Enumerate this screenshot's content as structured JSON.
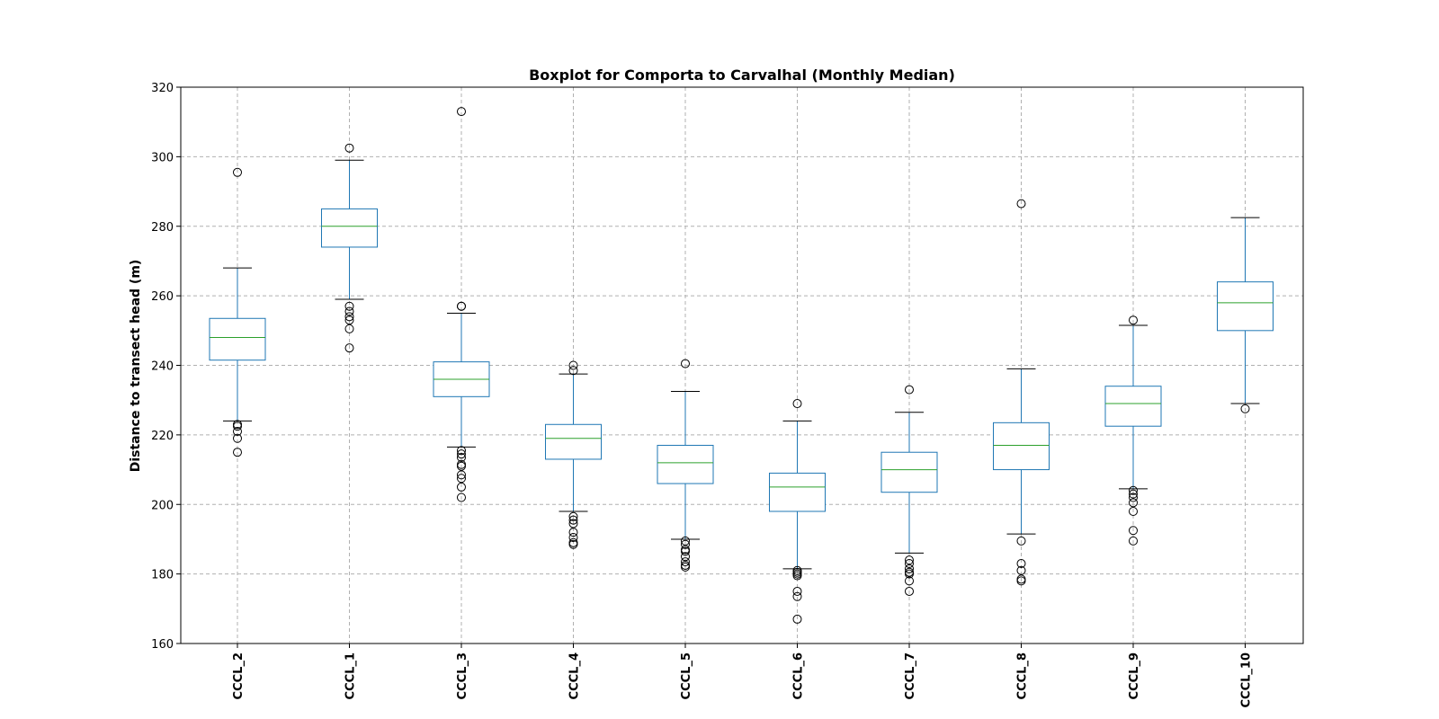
{
  "chart_data": {
    "type": "boxplot",
    "title": "Boxplot for Comporta to Carvalhal (Monthly Median)",
    "xlabel": "",
    "ylabel": "Distance to transect head (m)",
    "ylim": [
      160,
      320
    ],
    "yticks": [
      160,
      180,
      200,
      220,
      240,
      260,
      280,
      300,
      320
    ],
    "grid": true,
    "colors": {
      "box": "#1f77b4",
      "median": "#2ca02c",
      "whisker": "#1f77b4",
      "cap": "#000000",
      "flier": "#000000",
      "grid": "#b0b0b0"
    },
    "categories": [
      "CCCL_2",
      "CCCL_1",
      "CCCL_3",
      "CCCL_4",
      "CCCL_5",
      "CCCL_6",
      "CCCL_7",
      "CCCL_8",
      "CCCL_9",
      "CCCL_10"
    ],
    "boxes": [
      {
        "name": "CCCL_2",
        "whislo": 224,
        "q1": 241.5,
        "med": 248,
        "q3": 253.5,
        "whishi": 268,
        "fliers": [
          295.5,
          223,
          222.5,
          221,
          219,
          215
        ]
      },
      {
        "name": "CCCL_1",
        "whislo": 259,
        "q1": 274,
        "med": 280,
        "q3": 285,
        "whishi": 299,
        "fliers": [
          302.5,
          257,
          255.5,
          254,
          253,
          250.5,
          245
        ]
      },
      {
        "name": "CCCL_3",
        "whislo": 216.5,
        "q1": 231,
        "med": 236,
        "q3": 241,
        "whishi": 255,
        "fliers": [
          313,
          257,
          257,
          215.5,
          214.5,
          213.5,
          211.5,
          211,
          208.5,
          207.5,
          205,
          202
        ]
      },
      {
        "name": "CCCL_4",
        "whislo": 198,
        "q1": 213,
        "med": 219,
        "q3": 223,
        "whishi": 237.5,
        "fliers": [
          240,
          238.5,
          196.5,
          195.5,
          194.5,
          192,
          190.5,
          189,
          188.5
        ]
      },
      {
        "name": "CCCL_5",
        "whislo": 190,
        "q1": 206,
        "med": 212,
        "q3": 217,
        "whishi": 232.5,
        "fliers": [
          240.5,
          189.5,
          188.5,
          187,
          186.5,
          185,
          183.5,
          182.5,
          182
        ]
      },
      {
        "name": "CCCL_6",
        "whislo": 181.5,
        "q1": 198,
        "med": 205,
        "q3": 209,
        "whishi": 224,
        "fliers": [
          229,
          181,
          180.5,
          180,
          179.5,
          175,
          173.5,
          167
        ]
      },
      {
        "name": "CCCL_7",
        "whislo": 186,
        "q1": 203.5,
        "med": 210,
        "q3": 215,
        "whishi": 226.5,
        "fliers": [
          233,
          184,
          183,
          181.5,
          180.5,
          180,
          178,
          175
        ]
      },
      {
        "name": "CCCL_8",
        "whislo": 191.5,
        "q1": 210,
        "med": 217,
        "q3": 223.5,
        "whishi": 239,
        "fliers": [
          286.5,
          189.5,
          183,
          181,
          178.5,
          178
        ]
      },
      {
        "name": "CCCL_9",
        "whislo": 204.5,
        "q1": 222.5,
        "med": 229,
        "q3": 234,
        "whishi": 251.5,
        "fliers": [
          253,
          204,
          203,
          202,
          200.5,
          198,
          192.5,
          189.5
        ]
      },
      {
        "name": "CCCL_10",
        "whislo": 229,
        "q1": 250,
        "med": 258,
        "q3": 264,
        "whishi": 282.5,
        "fliers": [
          227.5
        ]
      }
    ]
  }
}
